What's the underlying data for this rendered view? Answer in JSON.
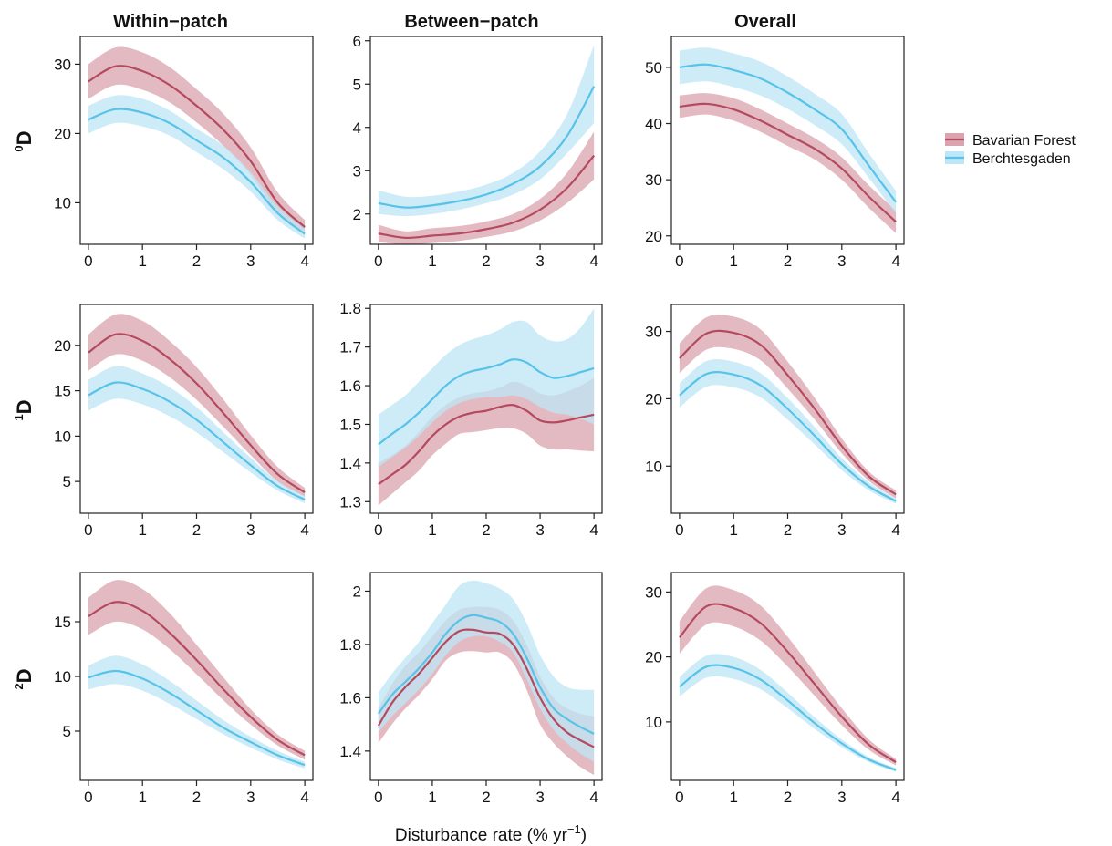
{
  "colors": {
    "bavarian": "#b44a5f",
    "bavarian_band": "#dba3ad",
    "berchtesgaden": "#57c3e8",
    "berchtesgaden_band": "#bde6f6",
    "axis": "#222222"
  },
  "column_titles": [
    "Within−patch",
    "Between−patch",
    "Overall"
  ],
  "row_labels": [
    {
      "sup": "0",
      "base": "D"
    },
    {
      "sup": "1",
      "base": "D"
    },
    {
      "sup": "2",
      "base": "D"
    }
  ],
  "xlabel": {
    "main": "Disturbance rate (% yr",
    "sup": "−1",
    "close": ")"
  },
  "legend": [
    {
      "label": "Bavarian Forest",
      "series": "bavarian"
    },
    {
      "label": "Berchtesgaden",
      "series": "berchtesgaden"
    }
  ],
  "chart_data": [
    {
      "type": "line",
      "row": 0,
      "col": 0,
      "x": [
        0,
        0.5,
        1,
        1.5,
        2,
        2.5,
        3,
        3.5,
        4
      ],
      "xlim": [
        -0.15,
        4.15
      ],
      "ylim": [
        4,
        34
      ],
      "yticks": [
        10,
        20,
        30
      ],
      "xticks": [
        0,
        1,
        2,
        3,
        4
      ],
      "series": [
        {
          "name": "Bavarian Forest",
          "key": "bavarian",
          "y": [
            27.5,
            29.7,
            29,
            27,
            24,
            20.5,
            16,
            10,
            6.5
          ],
          "lower": [
            25,
            27,
            26.3,
            24.5,
            21.6,
            18.2,
            14,
            8.5,
            5.5
          ],
          "upper": [
            30,
            32.4,
            31.7,
            29.6,
            26.4,
            22.8,
            18,
            11.5,
            7.5
          ]
        },
        {
          "name": "Berchtesgaden",
          "key": "berchtesgaden",
          "y": [
            22,
            23.5,
            23,
            21.5,
            19,
            16.5,
            13,
            8.5,
            5.5
          ],
          "lower": [
            20,
            21.5,
            21,
            19.7,
            17.3,
            14.8,
            11.6,
            7.5,
            4.8
          ],
          "upper": [
            24,
            25.5,
            25,
            23.3,
            20.7,
            18.2,
            14.4,
            9.5,
            6.2
          ]
        }
      ]
    },
    {
      "type": "line",
      "row": 0,
      "col": 1,
      "x": [
        0,
        0.5,
        1,
        1.5,
        2,
        2.5,
        3,
        3.5,
        4
      ],
      "xlim": [
        -0.15,
        4.15
      ],
      "ylim": [
        1.3,
        6.1
      ],
      "yticks": [
        2,
        3,
        4,
        5,
        6
      ],
      "xticks": [
        0,
        1,
        2,
        3,
        4
      ],
      "series": [
        {
          "name": "Bavarian Forest",
          "key": "bavarian",
          "y": [
            1.55,
            1.45,
            1.5,
            1.55,
            1.65,
            1.8,
            2.1,
            2.6,
            3.35
          ],
          "lower": [
            1.35,
            1.3,
            1.33,
            1.38,
            1.47,
            1.6,
            1.85,
            2.25,
            2.8
          ],
          "upper": [
            1.75,
            1.6,
            1.67,
            1.72,
            1.83,
            2.0,
            2.35,
            2.95,
            3.9
          ]
        },
        {
          "name": "Berchtesgaden",
          "key": "berchtesgaden",
          "y": [
            2.25,
            2.15,
            2.2,
            2.3,
            2.45,
            2.7,
            3.1,
            3.8,
            4.95
          ],
          "lower": [
            2.0,
            1.95,
            2.0,
            2.1,
            2.25,
            2.45,
            2.8,
            3.4,
            4.1
          ],
          "upper": [
            2.55,
            2.4,
            2.42,
            2.52,
            2.68,
            2.95,
            3.45,
            4.3,
            5.9
          ]
        }
      ]
    },
    {
      "type": "line",
      "row": 0,
      "col": 2,
      "x": [
        0,
        0.5,
        1,
        1.5,
        2,
        2.5,
        3,
        3.5,
        4
      ],
      "xlim": [
        -0.15,
        4.15
      ],
      "ylim": [
        18.5,
        55.5
      ],
      "yticks": [
        20,
        30,
        40,
        50
      ],
      "xticks": [
        0,
        1,
        2,
        3,
        4
      ],
      "series": [
        {
          "name": "Bavarian Forest",
          "key": "bavarian",
          "y": [
            43,
            43.5,
            42.5,
            40.5,
            38,
            35.5,
            32,
            27,
            22.5
          ],
          "lower": [
            41,
            41.6,
            40.5,
            38.5,
            36,
            33.6,
            30,
            25,
            20.5
          ],
          "upper": [
            45,
            45.4,
            44.5,
            42.5,
            40,
            37.4,
            34,
            29,
            24.5
          ]
        },
        {
          "name": "Berchtesgaden",
          "key": "berchtesgaden",
          "y": [
            50,
            50.5,
            49.5,
            48,
            45.5,
            42.5,
            39,
            32.5,
            26
          ],
          "lower": [
            47,
            47.5,
            46.5,
            45,
            42.6,
            39.7,
            36.3,
            30.3,
            24
          ],
          " upper": [
            53,
            53.5,
            52.5,
            51,
            48.4,
            45.3,
            41.7,
            34.7,
            28
          ]
        }
      ]
    },
    {
      "type": "line",
      "row": 1,
      "col": 0,
      "x": [
        0,
        0.5,
        1,
        1.5,
        2,
        2.5,
        3,
        3.5,
        4
      ],
      "xlim": [
        -0.15,
        4.15
      ],
      "ylim": [
        1.5,
        24.5
      ],
      "yticks": [
        5,
        10,
        15,
        20
      ],
      "xticks": [
        0,
        1,
        2,
        3,
        4
      ],
      "series": [
        {
          "name": "Bavarian Forest",
          "key": "bavarian",
          "y": [
            19.2,
            21.2,
            20.5,
            18.5,
            15.8,
            12.5,
            9,
            5.8,
            3.8
          ],
          "lower": [
            17.2,
            19,
            18.3,
            16.5,
            14,
            11,
            7.9,
            5,
            3.3
          ],
          "upper": [
            21.2,
            23.4,
            22.7,
            20.5,
            17.6,
            14,
            10.1,
            6.6,
            4.3
          ]
        },
        {
          "name": "Berchtesgaden",
          "key": "berchtesgaden",
          "y": [
            14.5,
            15.9,
            15.2,
            13.8,
            11.8,
            9.3,
            6.8,
            4.5,
            3.0
          ],
          "lower": [
            12.8,
            14.1,
            13.5,
            12.2,
            10.4,
            8.2,
            6,
            4,
            2.6
          ],
          "upper": [
            16.2,
            17.7,
            16.9,
            15.4,
            13.2,
            10.4,
            7.6,
            5,
            3.4
          ]
        }
      ]
    },
    {
      "type": "line",
      "row": 1,
      "col": 1,
      "x": [
        0,
        0.25,
        0.5,
        0.75,
        1,
        1.25,
        1.5,
        1.75,
        2,
        2.25,
        2.5,
        2.75,
        3,
        3.25,
        3.5,
        3.75,
        4
      ],
      "xlim": [
        -0.15,
        4.15
      ],
      "ylim": [
        1.27,
        1.81
      ],
      "yticks": [
        1.3,
        1.4,
        1.5,
        1.6,
        1.7,
        1.8
      ],
      "xticks": [
        0,
        1,
        2,
        3,
        4
      ],
      "series": [
        {
          "name": "Bavarian Forest",
          "key": "bavarian",
          "y": [
            1.345,
            1.37,
            1.395,
            1.43,
            1.47,
            1.5,
            1.52,
            1.53,
            1.535,
            1.545,
            1.55,
            1.535,
            1.51,
            1.505,
            1.51,
            1.518,
            1.525
          ],
          "lower": [
            1.29,
            1.32,
            1.35,
            1.38,
            1.42,
            1.45,
            1.475,
            1.48,
            1.485,
            1.49,
            1.49,
            1.475,
            1.445,
            1.435,
            1.435,
            1.432,
            1.43
          ],
          "upper": [
            1.4,
            1.42,
            1.445,
            1.48,
            1.52,
            1.55,
            1.57,
            1.58,
            1.585,
            1.595,
            1.61,
            1.6,
            1.58,
            1.575,
            1.585,
            1.6,
            1.62
          ]
        },
        {
          "name": "Berchtesgaden",
          "key": "berchtesgaden",
          "y": [
            1.448,
            1.475,
            1.5,
            1.53,
            1.565,
            1.6,
            1.625,
            1.638,
            1.645,
            1.655,
            1.668,
            1.66,
            1.635,
            1.62,
            1.625,
            1.635,
            1.645
          ],
          "lower": [
            1.39,
            1.415,
            1.44,
            1.47,
            1.505,
            1.535,
            1.555,
            1.565,
            1.57,
            1.57,
            1.575,
            1.565,
            1.545,
            1.53,
            1.525,
            1.515,
            1.5
          ],
          "upper": [
            1.525,
            1.55,
            1.575,
            1.61,
            1.645,
            1.68,
            1.705,
            1.72,
            1.73,
            1.745,
            1.765,
            1.765,
            1.73,
            1.715,
            1.72,
            1.75,
            1.8
          ]
        }
      ]
    },
    {
      "type": "line",
      "row": 1,
      "col": 2,
      "x": [
        0,
        0.5,
        1,
        1.5,
        2,
        2.5,
        3,
        3.5,
        4
      ],
      "xlim": [
        -0.15,
        4.15
      ],
      "ylim": [
        3,
        34
      ],
      "yticks": [
        10,
        20,
        30
      ],
      "xticks": [
        0,
        1,
        2,
        3,
        4
      ],
      "series": [
        {
          "name": "Bavarian Forest",
          "key": "bavarian",
          "y": [
            26,
            29.7,
            29.8,
            28,
            23.5,
            18.5,
            13,
            8.5,
            5.8
          ],
          "lower": [
            23.8,
            27.3,
            27.4,
            25.7,
            21.5,
            16.9,
            11.9,
            7.8,
            5.2
          ],
          "upper": [
            28.2,
            32.1,
            32.2,
            30.3,
            25.5,
            20.1,
            14.1,
            9.2,
            6.4
          ]
        },
        {
          "name": "Berchtesgaden",
          "key": "berchtesgaden",
          "y": [
            20.5,
            23.7,
            23.6,
            22,
            18.5,
            14.5,
            10.3,
            7,
            4.8
          ],
          "lower": [
            18.7,
            21.8,
            21.7,
            20.2,
            16.9,
            13.2,
            9.4,
            6.4,
            4.4
          ],
          "upper": [
            22.3,
            25.6,
            25.5,
            23.8,
            20.1,
            15.8,
            11.2,
            7.6,
            5.2
          ]
        }
      ]
    },
    {
      "type": "line",
      "row": 2,
      "col": 0,
      "x": [
        0,
        0.5,
        1,
        1.5,
        2,
        2.5,
        3,
        3.5,
        4
      ],
      "xlim": [
        -0.15,
        4.15
      ],
      "ylim": [
        0.5,
        19.5
      ],
      "yticks": [
        5,
        10,
        15
      ],
      "xticks": [
        0,
        1,
        2,
        3,
        4
      ],
      "series": [
        {
          "name": "Bavarian Forest",
          "key": "bavarian",
          "y": [
            15.5,
            16.8,
            16,
            14,
            11.5,
            8.8,
            6.3,
            4.2,
            2.8
          ],
          "lower": [
            13.8,
            15,
            14.3,
            12.5,
            10.2,
            7.8,
            5.6,
            3.7,
            2.4
          ],
          "upper": [
            17.2,
            18.8,
            18,
            15.8,
            12.9,
            9.9,
            7,
            4.7,
            3.2
          ]
        },
        {
          "name": "Berchtesgaden",
          "key": "berchtesgaden",
          "y": [
            9.9,
            10.5,
            9.8,
            8.5,
            6.9,
            5.3,
            4.0,
            2.8,
            1.9
          ],
          "lower": [
            8.8,
            9.3,
            8.7,
            7.5,
            6.1,
            4.7,
            3.5,
            2.4,
            1.6
          ],
          "upper": [
            11,
            11.9,
            11.1,
            9.6,
            7.8,
            6,
            4.5,
            3.2,
            2.2
          ]
        }
      ]
    },
    {
      "type": "line",
      "row": 2,
      "col": 1,
      "x": [
        0,
        0.25,
        0.5,
        0.75,
        1,
        1.25,
        1.5,
        1.75,
        2,
        2.25,
        2.5,
        2.75,
        3,
        3.25,
        3.5,
        3.75,
        4
      ],
      "xlim": [
        -0.15,
        4.15
      ],
      "ylim": [
        1.29,
        2.07
      ],
      "yticks": [
        1.4,
        1.6,
        1.8,
        2.0
      ],
      "xticks": [
        0,
        1,
        2,
        3,
        4
      ],
      "series": [
        {
          "name": "Bavarian Forest",
          "key": "bavarian",
          "y": [
            1.495,
            1.58,
            1.64,
            1.69,
            1.75,
            1.81,
            1.85,
            1.855,
            1.845,
            1.84,
            1.8,
            1.71,
            1.6,
            1.52,
            1.47,
            1.44,
            1.415
          ],
          "lower": [
            1.43,
            1.5,
            1.56,
            1.61,
            1.67,
            1.74,
            1.77,
            1.775,
            1.77,
            1.77,
            1.73,
            1.63,
            1.5,
            1.43,
            1.38,
            1.34,
            1.31
          ],
          "upper": [
            1.56,
            1.65,
            1.72,
            1.77,
            1.83,
            1.89,
            1.93,
            1.94,
            1.94,
            1.93,
            1.89,
            1.8,
            1.68,
            1.6,
            1.56,
            1.54,
            1.53
          ]
        },
        {
          "name": "Berchtesgaden",
          "key": "berchtesgaden",
          "y": [
            1.54,
            1.61,
            1.66,
            1.71,
            1.77,
            1.84,
            1.89,
            1.91,
            1.9,
            1.885,
            1.84,
            1.75,
            1.64,
            1.56,
            1.52,
            1.49,
            1.465
          ],
          "lower": [
            1.47,
            1.53,
            1.58,
            1.63,
            1.69,
            1.76,
            1.81,
            1.83,
            1.83,
            1.81,
            1.77,
            1.67,
            1.56,
            1.48,
            1.43,
            1.39,
            1.36
          ],
          "upper": [
            1.62,
            1.69,
            1.75,
            1.81,
            1.88,
            1.95,
            2.02,
            2.04,
            2.03,
            2.01,
            1.97,
            1.88,
            1.76,
            1.68,
            1.64,
            1.63,
            1.63
          ]
        }
      ]
    },
    {
      "type": "line",
      "row": 2,
      "col": 2,
      "x": [
        0,
        0.5,
        1,
        1.5,
        2,
        2.5,
        3,
        3.5,
        4
      ],
      "xlim": [
        -0.15,
        4.15
      ],
      "ylim": [
        1,
        33
      ],
      "yticks": [
        10,
        20,
        30
      ],
      "xticks": [
        0,
        1,
        2,
        3,
        4
      ],
      "series": [
        {
          "name": "Bavarian Forest",
          "key": "bavarian",
          "y": [
            23,
            27.8,
            27.5,
            25.2,
            20.8,
            15.8,
            10.8,
            6.5,
            3.8
          ],
          "lower": [
            20.5,
            25,
            24.7,
            22.5,
            18.5,
            14,
            9.5,
            5.7,
            3.3
          ],
          "upper": [
            25.5,
            30.6,
            30.3,
            27.9,
            23.1,
            17.6,
            12.1,
            7.3,
            4.3
          ]
        },
        {
          "name": "Berchtesgaden",
          "key": "berchtesgaden",
          "y": [
            15.4,
            18.5,
            18.3,
            16.5,
            13.3,
            9.8,
            6.7,
            4.2,
            2.6
          ],
          "lower": [
            13.9,
            16.8,
            16.6,
            15,
            12.1,
            8.9,
            6.1,
            3.8,
            2.3
          ],
          "upper": [
            16.9,
            20.2,
            20,
            18,
            14.5,
            10.7,
            7.3,
            4.6,
            2.9
          ]
        }
      ]
    }
  ]
}
